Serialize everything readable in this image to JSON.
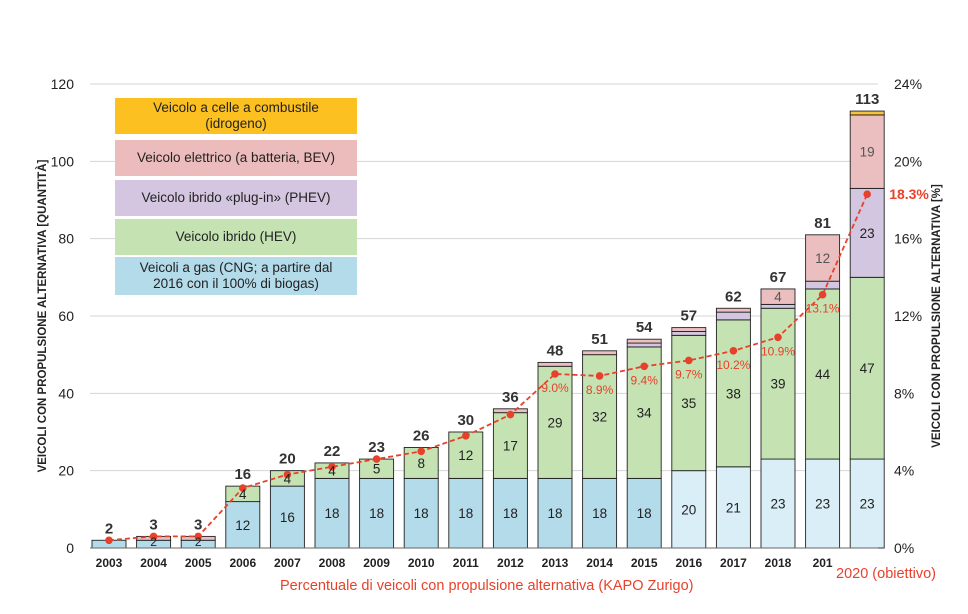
{
  "chart_data": {
    "type": "bar",
    "stacked": true,
    "categories": [
      "2003",
      "2004",
      "2005",
      "2006",
      "2007",
      "2008",
      "2009",
      "2010",
      "2011",
      "2012",
      "2013",
      "2014",
      "2015",
      "2016",
      "2017",
      "2018",
      "201",
      "2020 (obiettivo)"
    ],
    "series": [
      {
        "name": "Veicoli a gas (CNG; a partire dal 2016 con il 100% di biogas)",
        "color": "#b4dbea",
        "values": [
          2,
          2,
          2,
          12,
          16,
          18,
          18,
          18,
          18,
          18,
          18,
          18,
          18,
          20,
          21,
          23,
          23,
          23
        ],
        "labels": [
          "",
          "2",
          "2",
          "12",
          "16",
          "18",
          "18",
          "18",
          "18",
          "18",
          "18",
          "18",
          "18",
          "20",
          "21",
          "23",
          "23",
          "23"
        ]
      },
      {
        "name": "Veicolo ibrido (HEV)",
        "color": "#c4e2b2",
        "values": [
          0,
          0,
          0,
          4,
          4,
          4,
          5,
          8,
          12,
          17,
          29,
          32,
          34,
          35,
          38,
          39,
          44,
          47
        ],
        "labels": [
          "",
          "",
          "",
          "4",
          "4",
          "4",
          "5",
          "8",
          "12",
          "17",
          "29",
          "32",
          "34",
          "35",
          "38",
          "39",
          "44",
          "47"
        ]
      },
      {
        "name": "Veicolo ibrido «plug-in» (PHEV)",
        "color": "#d3c6e0",
        "values": [
          0,
          0,
          0,
          0,
          0,
          0,
          0,
          0,
          0,
          0,
          0,
          0,
          1,
          1,
          2,
          1,
          2,
          23
        ],
        "labels": [
          "",
          "",
          "",
          "",
          "",
          "",
          "",
          "",
          "",
          "",
          "",
          "",
          "",
          "",
          "",
          "",
          "",
          "23"
        ]
      },
      {
        "name": "Veicolo elettrico (a batteria, BEV)",
        "color": "#ebbfbf",
        "values": [
          0,
          1,
          1,
          0,
          0,
          0,
          0,
          0,
          0,
          1,
          1,
          1,
          1,
          1,
          1,
          4,
          12,
          19
        ],
        "labels": [
          "",
          "",
          "",
          "",
          "",
          "",
          "",
          "",
          "",
          "",
          "",
          "",
          "",
          "",
          "",
          "4",
          "12",
          "19"
        ]
      },
      {
        "name": "Veicolo a celle a combustile (idrogeno)",
        "color": "#f7c23c",
        "values": [
          0,
          0,
          0,
          0,
          0,
          0,
          0,
          0,
          0,
          0,
          0,
          0,
          0,
          0,
          0,
          0,
          0,
          1
        ],
        "labels": [
          "",
          "",
          "",
          "",
          "",
          "",
          "",
          "",
          "",
          "",
          "",
          "",
          "",
          "",
          "",
          "",
          "",
          ""
        ]
      }
    ],
    "totals": [
      "2",
      "3",
      "3",
      "16",
      "20",
      "22",
      "23",
      "26",
      "30",
      "36",
      "48",
      "51",
      "54",
      "57",
      "62",
      "67",
      "81",
      "113"
    ],
    "percent_series": {
      "values": [
        0.4,
        0.6,
        0.6,
        3.1,
        3.8,
        4.2,
        4.6,
        5.0,
        5.8,
        6.9,
        9.0,
        8.9,
        9.4,
        9.7,
        10.2,
        10.9,
        13.1,
        18.3
      ],
      "labels": [
        "",
        "",
        "",
        "",
        "",
        "",
        "",
        "",
        "",
        "",
        "9.0%",
        "8.9%",
        "9.4%",
        "9.7%",
        "10.2%",
        "10.9%",
        "13.1%",
        "18.3%"
      ],
      "color": "#e8412b"
    },
    "ylabel": "VEICOLI CON PROPULSIONE ALTERNATIVA [QUANTITÀ]",
    "y2label": "VEICOLI CON PROPULSIONE ALTERNATIVA [%]",
    "ylim": [
      0,
      120
    ],
    "y2lim": [
      0,
      24
    ],
    "yticks": [
      "0",
      "20",
      "40",
      "60",
      "80",
      "100",
      "120"
    ],
    "y2ticks": [
      "0%",
      "4%",
      "8%",
      "12%",
      "16%",
      "20%",
      "24%"
    ],
    "grid": true,
    "legend_position": "top-left",
    "legend": [
      {
        "lines": [
          "Veicolo a celle a combustile",
          "(idrogeno)"
        ],
        "color": "#fcc021"
      },
      {
        "lines": [
          "Veicolo elettrico (a batteria, BEV)"
        ],
        "color": "#ecbcbc"
      },
      {
        "lines": [
          "Veicolo ibrido «plug-in» (PHEV)"
        ],
        "color": "#d4c6e0"
      },
      {
        "lines": [
          "Veicolo ibrido (HEV)"
        ],
        "color": "#c4e2b2"
      },
      {
        "lines": [
          "Veicoli a gas (CNG; a partire dal",
          "2016 con il 100% di biogas)"
        ],
        "color": "#b4dbea"
      }
    ],
    "caption": "Percentuale di veicoli con propulsione alternativa (KAPO Zurigo)"
  }
}
